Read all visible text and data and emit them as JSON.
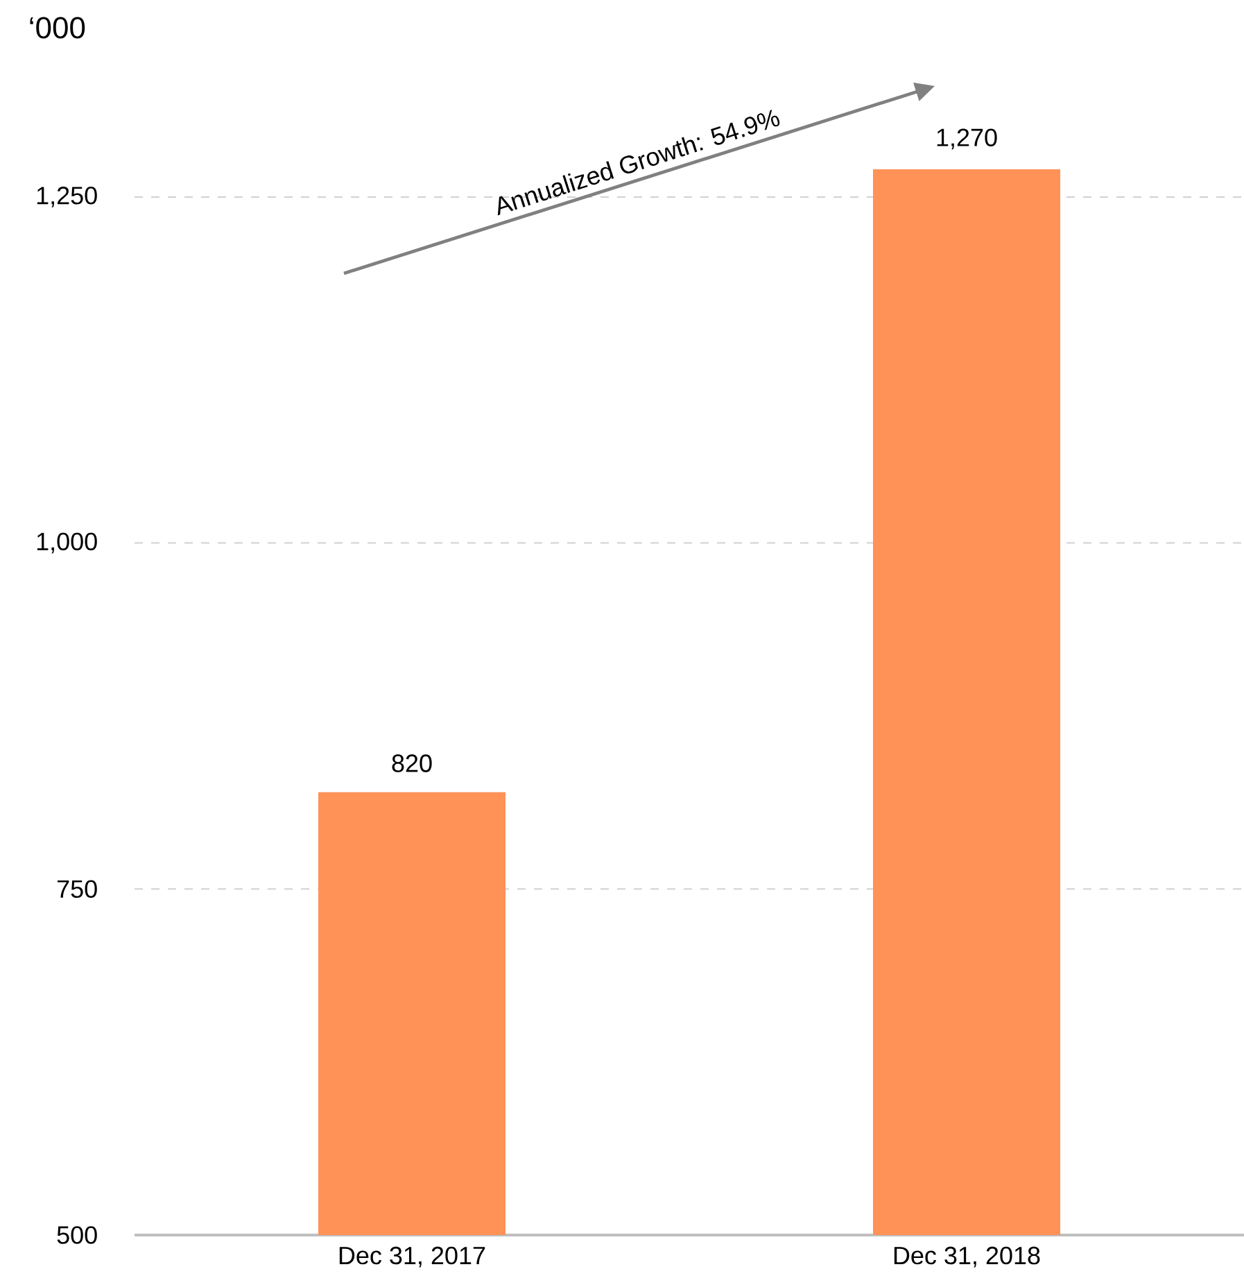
{
  "chart_data": {
    "type": "bar",
    "ylabel": "‘000",
    "categories": [
      "Dec 31, 2017",
      "Dec 31, 2018"
    ],
    "values": [
      820,
      1270
    ],
    "color": "#ff9257",
    "value_labels": [
      "820",
      "1,270"
    ],
    "yticks": [
      {
        "value": 500,
        "label": "500"
      },
      {
        "value": 750,
        "label": "750"
      },
      {
        "value": 1000,
        "label": "1,000"
      },
      {
        "value": 1250,
        "label": "1,250"
      }
    ],
    "ylim": [
      500,
      1270
    ],
    "grid": "y",
    "annotations": [
      "Annualized Growth: 54.9%"
    ]
  }
}
